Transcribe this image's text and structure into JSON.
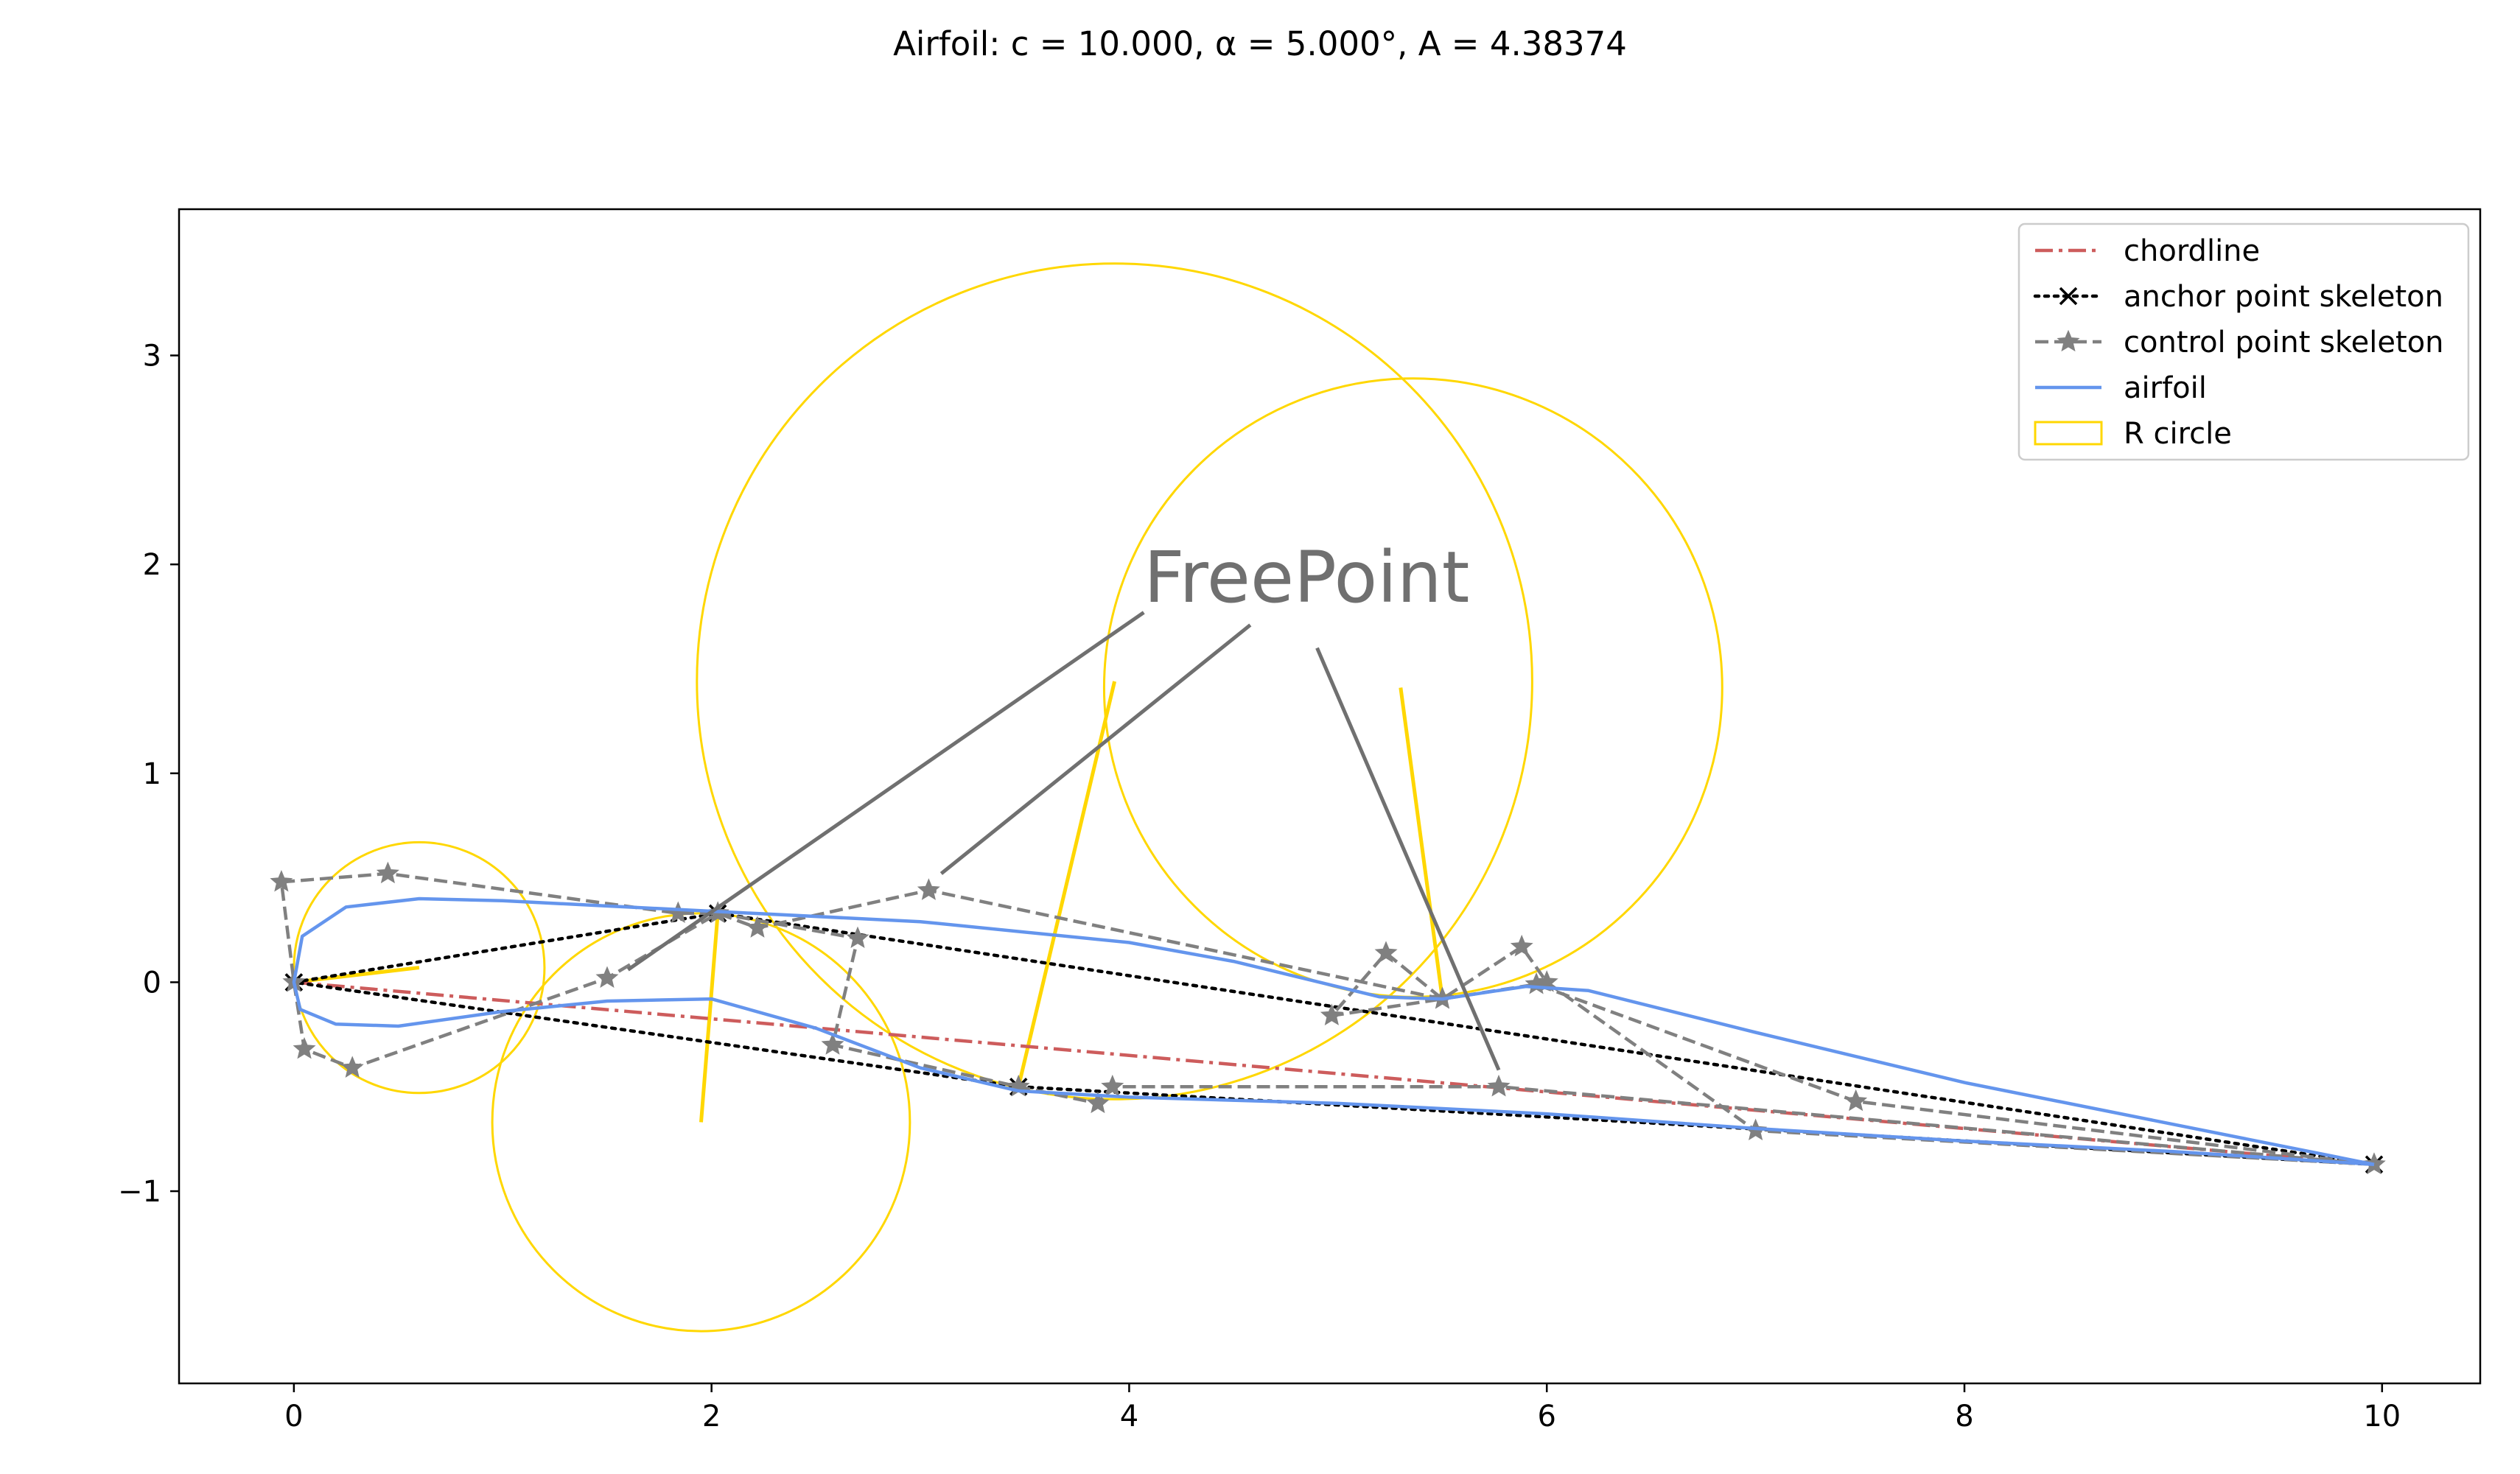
{
  "chart_data": {
    "type": "line",
    "title": "Airfoil: c = 10.000, α = 5.000°, A = 4.38374",
    "xlabel": "",
    "ylabel": "",
    "xlim": [
      -0.55,
      10.47
    ],
    "ylim": [
      -1.92,
      3.7
    ],
    "x_ticks": [
      0,
      2,
      4,
      6,
      8,
      10
    ],
    "y_ticks": [
      -1,
      0,
      1,
      2,
      3
    ],
    "x_tick_labels": [
      "0",
      "2",
      "4",
      "6",
      "8",
      "10"
    ],
    "y_tick_labels": [
      "−1",
      "0",
      "1",
      "2",
      "3"
    ],
    "grid": false,
    "legend_position": "top-right",
    "legend": [
      {
        "key": "chordline",
        "label": "chordline"
      },
      {
        "key": "anchor",
        "label": "anchor point skeleton"
      },
      {
        "key": "control",
        "label": "control point skeleton"
      },
      {
        "key": "airfoil",
        "label": "airfoil"
      },
      {
        "key": "rcircle",
        "label": "R circle"
      }
    ],
    "colors": {
      "chordline": "#cd5c5c",
      "anchor": "#000000",
      "control": "#808080",
      "airfoil": "#6495ed",
      "rcircle": "#ffd700",
      "annotation": "#707070"
    },
    "series": [
      {
        "key": "chordline",
        "x": [
          0.0,
          9.962
        ],
        "y": [
          0.0,
          -0.872
        ]
      },
      {
        "key": "anchor",
        "x": [
          0.0,
          2.03,
          9.962,
          3.47,
          0.0
        ],
        "y": [
          0.0,
          0.33,
          -0.872,
          -0.5,
          0.0
        ]
      },
      {
        "key": "control",
        "x": [
          9.962,
          7.0,
          6.0,
          5.88,
          5.5,
          5.23,
          4.97,
          5.5,
          5.95,
          7.48,
          9.962
        ],
        "y": [
          -0.872,
          -0.71,
          0.0,
          0.17,
          -0.08,
          0.14,
          -0.16,
          -0.08,
          -0.01,
          -0.57,
          -0.872
        ]
      },
      {
        "key": "control",
        "x": [
          5.5,
          3.04,
          2.22,
          2.03,
          1.84,
          0.45,
          -0.06,
          0.0,
          0.05,
          0.28,
          1.5,
          2.03,
          2.7,
          2.58,
          3.47,
          3.85,
          3.92,
          5.77,
          9.962
        ],
        "y": [
          -0.08,
          0.44,
          0.26,
          0.33,
          0.33,
          0.52,
          0.48,
          0.0,
          -0.32,
          -0.41,
          0.02,
          0.33,
          0.21,
          -0.3,
          -0.5,
          -0.58,
          -0.5,
          -0.5,
          -0.872
        ]
      },
      {
        "key": "airfoil",
        "x": [
          9.962,
          9.0,
          8.0,
          7.0,
          6.2,
          5.9,
          5.5,
          5.2,
          4.5,
          4.0,
          3.0,
          2.0,
          1.0,
          0.6,
          0.25,
          0.04,
          0.0,
          0.03,
          0.2,
          0.5,
          1.0,
          1.5,
          2.0,
          2.5,
          3.0,
          3.47,
          4.0,
          5.0,
          6.0,
          7.0,
          8.0,
          9.0,
          9.962
        ],
        "y": [
          -0.872,
          -0.68,
          -0.48,
          -0.24,
          -0.04,
          -0.02,
          -0.08,
          -0.07,
          0.1,
          0.19,
          0.29,
          0.34,
          0.39,
          0.4,
          0.36,
          0.22,
          0.0,
          -0.13,
          -0.2,
          -0.21,
          -0.14,
          -0.09,
          -0.08,
          -0.22,
          -0.41,
          -0.52,
          -0.55,
          -0.58,
          -0.63,
          -0.7,
          -0.76,
          -0.81,
          -0.872
        ]
      }
    ],
    "r_circles": [
      {
        "cx": 0.6,
        "cy": 0.07,
        "r": 0.6
      },
      {
        "cx": 1.95,
        "cy": -0.67,
        "r": 1.0
      },
      {
        "cx": 3.93,
        "cy": 1.44,
        "r": 2.0
      },
      {
        "cx": 5.36,
        "cy": 1.41,
        "r": 1.48
      }
    ],
    "r_lines": [
      {
        "x": [
          0.0,
          0.6
        ],
        "y": [
          0.0,
          0.07
        ]
      },
      {
        "x": [
          2.03,
          1.95
        ],
        "y": [
          0.33,
          -0.67
        ]
      },
      {
        "x": [
          3.47,
          3.93
        ],
        "y": [
          -0.5,
          1.44
        ]
      },
      {
        "x": [
          5.5,
          5.3
        ],
        "y": [
          -0.08,
          1.41
        ]
      }
    ],
    "annotation": {
      "text": "FreePoint",
      "anchor": [
        4.85,
        1.82
      ],
      "targets": [
        [
          1.6,
          0.06
        ],
        [
          3.1,
          0.52
        ],
        [
          5.77,
          -0.42
        ]
      ],
      "line_starts": [
        [
          4.07,
          1.77
        ],
        [
          4.58,
          1.71
        ],
        [
          4.9,
          1.6
        ]
      ]
    }
  }
}
